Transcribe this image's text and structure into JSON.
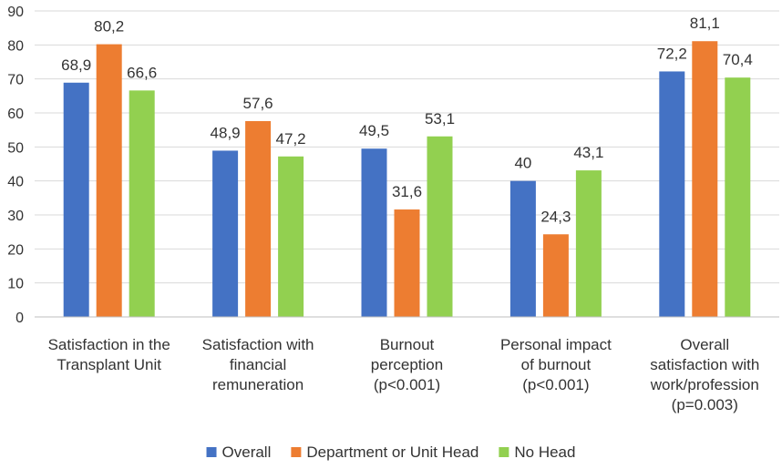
{
  "chart_data": {
    "type": "bar",
    "categories": [
      [
        "Satisfaction in the",
        "Transplant Unit"
      ],
      [
        "Satisfaction with",
        "financial",
        "remuneration"
      ],
      [
        "Burnout",
        "perception",
        "(p<0.001)"
      ],
      [
        "Personal impact",
        "of burnout",
        "(p<0.001)"
      ],
      [
        "Overall",
        "satisfaction with",
        "work/profession",
        "(p=0.003)"
      ]
    ],
    "series": [
      {
        "name": "Overall",
        "color": "#4472c4",
        "values": [
          68.9,
          48.9,
          49.5,
          40,
          72.2
        ],
        "labels": [
          "68,9",
          "48,9",
          "49,5",
          "40",
          "72,2"
        ]
      },
      {
        "name": "Department or Unit Head",
        "color": "#ed7d31",
        "values": [
          80.2,
          57.6,
          31.6,
          24.3,
          81.1
        ],
        "labels": [
          "80,2",
          "57,6",
          "31,6",
          "24,3",
          "81,1"
        ]
      },
      {
        "name": "No Head",
        "color": "#92d050",
        "values": [
          66.6,
          47.2,
          53.1,
          43.1,
          70.4
        ],
        "labels": [
          "66,6",
          "47,2",
          "53,1",
          "43,1",
          "70,4"
        ]
      }
    ],
    "yticks": [
      0,
      10,
      20,
      30,
      40,
      50,
      60,
      70,
      80,
      90
    ],
    "ylim": [
      0,
      90
    ],
    "grid": true,
    "legend_position": "bottom",
    "title": "",
    "xlabel": "",
    "ylabel": ""
  }
}
